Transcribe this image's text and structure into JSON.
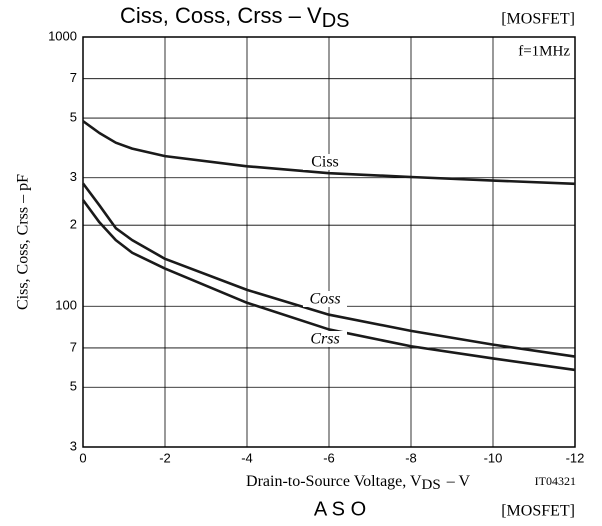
{
  "chart_data": {
    "type": "line",
    "title": "Ciss, Coss, Crss – V",
    "title_subscript": "DS",
    "tag": "[MOSFET]",
    "annotation": "f=1MHz",
    "figure_id": "IT04321",
    "x_label": "Drain-to-Source Voltage, V",
    "x_label_subscript": "DS",
    "x_label_suffix": "– V",
    "y_label": "Ciss, Coss, Crss – pF",
    "x": [
      0,
      -0.4,
      -0.8,
      -1.2,
      -2,
      -4,
      -6,
      -8,
      -10,
      -12
    ],
    "series": [
      {
        "name": "Ciss",
        "color": "#1a1a1a",
        "values": [
          487,
          440,
          405,
          385,
          361,
          331,
          312,
          302,
          293,
          285
        ]
      },
      {
        "name": "Coss",
        "color": "#1a1a1a",
        "values": [
          286,
          237,
          195,
          176,
          150,
          115,
          93,
          81,
          72,
          65
        ]
      },
      {
        "name": "Crss",
        "color": "#1a1a1a",
        "values": [
          248,
          205,
          176,
          158,
          138,
          103,
          82,
          71,
          64,
          58
        ]
      }
    ],
    "xlim": [
      0,
      -12
    ],
    "xticks": [
      0,
      -2,
      -4,
      -6,
      -8,
      -10,
      -12
    ],
    "ylim": [
      30,
      1000
    ],
    "log_y": true,
    "grid": true,
    "yticks": [
      1000,
      {
        "value": 700,
        "label": "7"
      },
      {
        "value": 500,
        "label": "5"
      },
      {
        "value": 300,
        "label": "3"
      },
      {
        "value": 200,
        "label": "2"
      },
      100,
      {
        "value": 70,
        "label": "7"
      },
      {
        "value": 50,
        "label": "5"
      },
      {
        "value": 30,
        "label": "3"
      }
    ]
  },
  "next_section": {
    "title": "A S O",
    "tag": "[MOSFET]"
  }
}
